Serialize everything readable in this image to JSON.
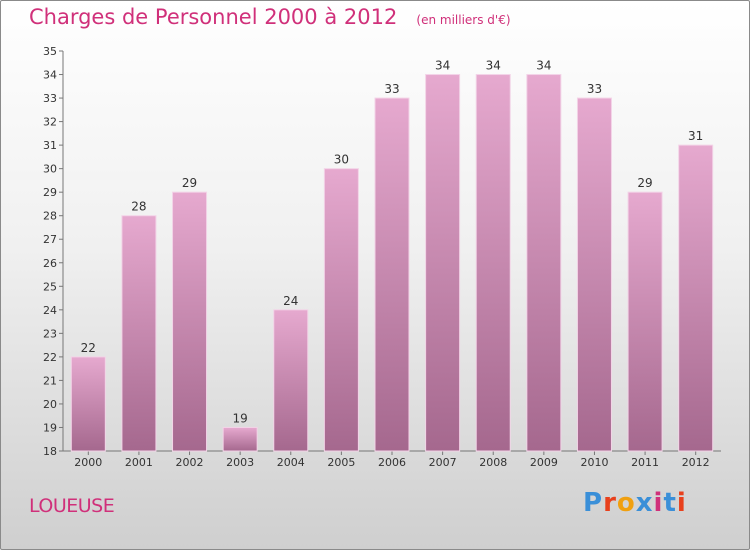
{
  "header": {
    "title": "Charges de Personnel 2000 à 2012",
    "subtitle": "(en milliers d'€)"
  },
  "footer": {
    "commune": "LOUEUSE",
    "logo_text": "Proxiti",
    "logo_colors": [
      "#3a8fd8",
      "#e8401c",
      "#f0a010",
      "#3a8fd8",
      "#d0307a",
      "#3a8fd8",
      "#e8401c"
    ]
  },
  "colors": {
    "bar_top": "#e6a9cf",
    "bar_bottom": "#a5688e",
    "bar_edge": "#f3d3e7",
    "accent": "#d0307a"
  },
  "chart_data": {
    "type": "bar",
    "categories": [
      "2000",
      "2001",
      "2002",
      "2003",
      "2004",
      "2005",
      "2006",
      "2007",
      "2008",
      "2009",
      "2010",
      "2011",
      "2012"
    ],
    "values": [
      22,
      28,
      29,
      19,
      24,
      30,
      33,
      34,
      34,
      34,
      33,
      29,
      31
    ],
    "y_ticks": [
      "18",
      "19",
      "20",
      "21",
      "22",
      "23",
      "24",
      "25",
      "26",
      "27",
      "28",
      "29",
      "30",
      "31",
      "32",
      "33",
      "34",
      "35"
    ],
    "ylim": [
      18,
      35
    ],
    "grid": false,
    "legend": "none"
  }
}
